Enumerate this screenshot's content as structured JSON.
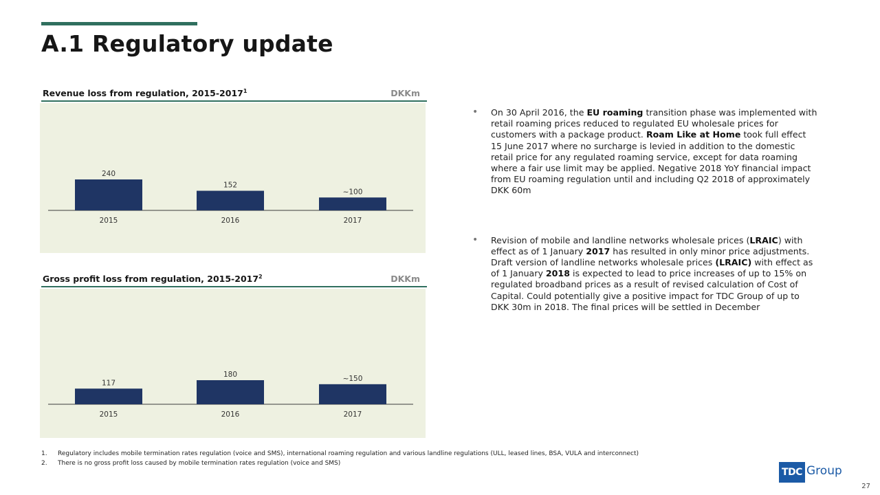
{
  "slide": {
    "title": "A.1 Regulatory update",
    "page_number": "27"
  },
  "chart_data": [
    {
      "type": "bar",
      "title": "Revenue loss from regulation, 2015-2017",
      "title_superscript": "1",
      "unit": "DKKm",
      "categories": [
        "2015",
        "2016",
        "2017"
      ],
      "values": [
        240,
        152,
        100
      ],
      "value_labels": [
        "240",
        "152",
        "~100"
      ],
      "bar_color": "#1f3564",
      "panel_color": "#eef1e1"
    },
    {
      "type": "bar",
      "title": "Gross profit loss from regulation, 2015-2017",
      "title_superscript": "2",
      "unit": "DKKm",
      "categories": [
        "2015",
        "2016",
        "2017"
      ],
      "values": [
        117,
        180,
        150
      ],
      "value_labels": [
        "117",
        "180",
        "~150"
      ],
      "bar_color": "#1f3564",
      "panel_color": "#eef1e1"
    }
  ],
  "bullets": [
    {
      "segments": [
        {
          "text": "On 30 April 2016, the ",
          "bold": false
        },
        {
          "text": "EU roaming",
          "bold": true
        },
        {
          "text": " transition phase was implemented with retail roaming prices reduced to regulated EU wholesale prices for customers with a package product. ",
          "bold": false
        },
        {
          "text": "Roam Like at Home",
          "bold": true
        },
        {
          "text": " took full effect 15 June 2017 where no surcharge is levied in addition to the domestic retail price for any regulated roaming service, except for data roaming where a fair use limit may be applied. Negative 2018 YoY financial impact from EU roaming regulation until and including Q2 2018 of approximately DKK 60m",
          "bold": false
        }
      ]
    },
    {
      "segments": [
        {
          "text": "Revision of mobile and landline networks wholesale prices (",
          "bold": false
        },
        {
          "text": "LRAIC",
          "bold": true
        },
        {
          "text": ") with effect as of 1 January ",
          "bold": false
        },
        {
          "text": "2017",
          "bold": true
        },
        {
          "text": " has resulted in only minor price adjustments. Draft version of landline networks wholesale prices ",
          "bold": false
        },
        {
          "text": "(LRAIC)",
          "bold": true
        },
        {
          "text": " with effect as of 1 January ",
          "bold": false
        },
        {
          "text": "2018",
          "bold": true
        },
        {
          "text": " is expected to lead to price increases of up to 15% on regulated broadband prices as a result of revised calculation of Cost of Capital. Could potentially give a positive impact for TDC Group of up to DKK 30m in 2018. The final prices will be settled in December",
          "bold": false
        }
      ]
    }
  ],
  "footnotes": [
    {
      "num": "1.",
      "text": "Regulatory includes mobile termination rates regulation (voice and SMS), international roaming regulation and various landline regulations (ULL, leased lines, BSA, VULA and interconnect)"
    },
    {
      "num": "2.",
      "text": "There is no gross profit loss caused by mobile termination rates regulation (voice and SMS)"
    }
  ],
  "logo": {
    "mark": "TDC",
    "text": "Group",
    "color": "#1b5aa6"
  }
}
